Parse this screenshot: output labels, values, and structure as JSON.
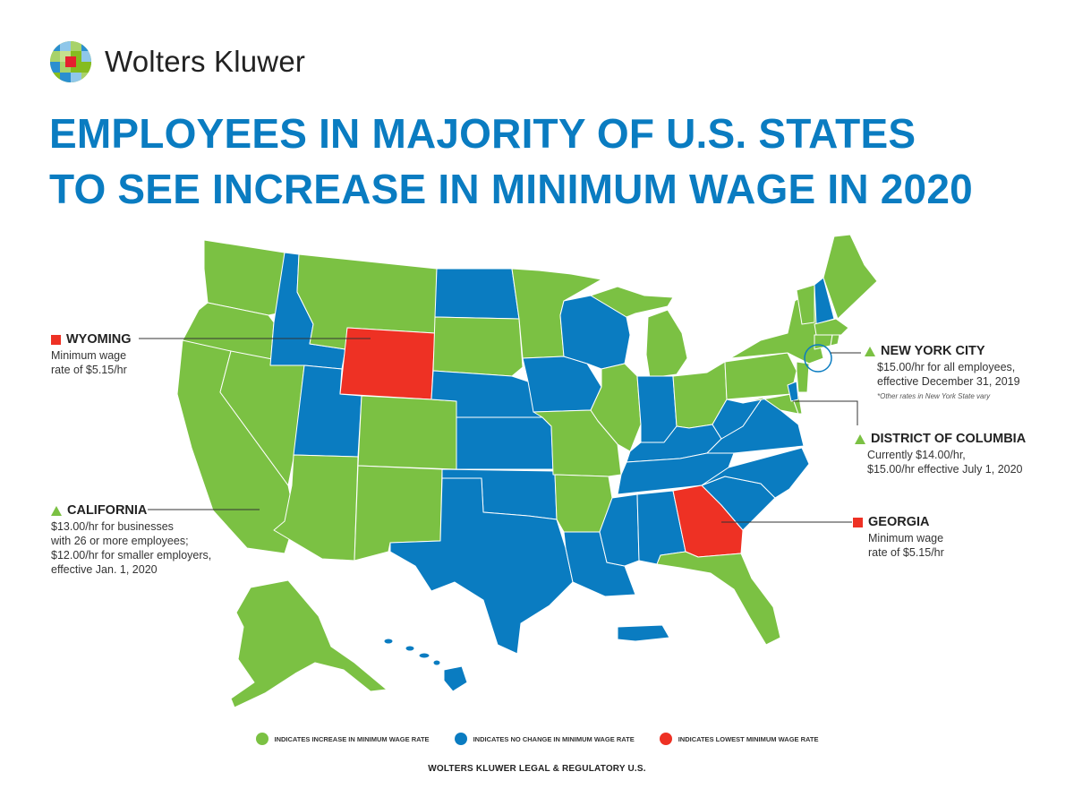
{
  "brand": {
    "name": "Wolters Kluwer",
    "logo_icon": "wolters-kluwer-globe-logo",
    "registered": "®"
  },
  "title": {
    "line1": "EMPLOYEES IN MAJORITY OF U.S. STATES",
    "line2": "TO SEE INCREASE IN MINIMUM WAGE IN 2020"
  },
  "colors": {
    "increase": "#7bc143",
    "no_change": "#0a7cc1",
    "lowest": "#ee3124",
    "title": "#0a7cc1"
  },
  "callouts": {
    "wyoming": {
      "name": "WYOMING",
      "text": "Minimum wage\nrate of $5.15/hr",
      "marker": "square"
    },
    "california": {
      "name": "CALIFORNIA",
      "text": "$13.00/hr for businesses\nwith 26 or more employees;\n$12.00/hr for smaller employers,\neffective Jan. 1, 2020",
      "marker": "triangle"
    },
    "new_york_city": {
      "name": "NEW YORK CITY",
      "text": "$15.00/hr for all employees,\neffective December 31, 2019",
      "note": "*Other rates in New York State vary",
      "marker": "triangle"
    },
    "district_of_columbia": {
      "name": "DISTRICT OF COLUMBIA",
      "text": "Currently $14.00/hr,\n $15.00/hr effective July 1, 2020",
      "marker": "triangle"
    },
    "georgia": {
      "name": "GEORGIA",
      "text": "Minimum wage\nrate of $5.15/hr",
      "marker": "square"
    }
  },
  "legend": {
    "increase": "INDICATES INCREASE IN MINIMUM WAGE RATE",
    "no_change": "INDICATES NO CHANGE IN MINIMUM WAGE RATE",
    "lowest": "INDICATES LOWEST MINIMUM WAGE RATE"
  },
  "footer": "WOLTERS KLUWER LEGAL & REGULATORY U.S.",
  "states": {
    "increase": [
      "Washington",
      "Oregon",
      "California",
      "Nevada",
      "Arizona",
      "Montana",
      "Colorado",
      "New Mexico",
      "South Dakota",
      "Minnesota",
      "Missouri",
      "Arkansas",
      "Illinois",
      "Michigan",
      "Ohio",
      "Florida",
      "New York",
      "Pennsylvania",
      "New Jersey",
      "Maryland",
      "Delaware",
      "Vermont",
      "Maine",
      "Massachusetts",
      "Connecticut",
      "Rhode Island",
      "Alaska"
    ],
    "no_change": [
      "Idaho",
      "Utah",
      "North Dakota",
      "Nebraska",
      "Kansas",
      "Oklahoma",
      "Texas",
      "Iowa",
      "Wisconsin",
      "Indiana",
      "Kentucky",
      "Tennessee",
      "Mississippi",
      "Alabama",
      "Louisiana",
      "West Virginia",
      "Virginia",
      "North Carolina",
      "South Carolina",
      "New Hampshire",
      "District of Columbia",
      "Hawaii",
      "Puerto Rico"
    ],
    "lowest": [
      "Wyoming",
      "Georgia"
    ]
  }
}
